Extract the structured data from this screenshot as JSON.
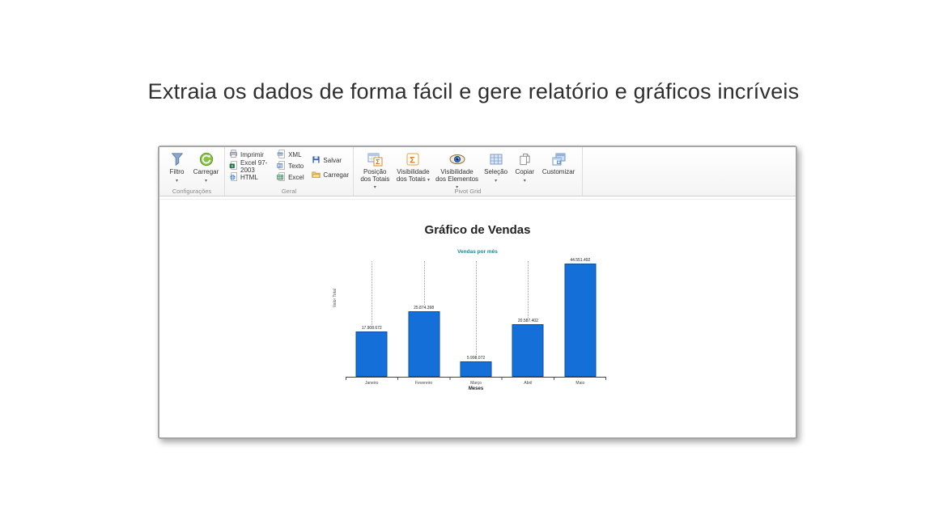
{
  "page": {
    "headline": "Extraia os dados de forma fácil e gere relatório e gráficos incríveis"
  },
  "toolbar": {
    "groups": [
      {
        "caption": "Configurações",
        "buttons": [
          {
            "label": "Filtro",
            "icon": "filter-funnel-icon",
            "has_dropdown": true
          },
          {
            "label": "Carregar",
            "icon": "refresh-load-icon",
            "has_dropdown": true
          }
        ]
      },
      {
        "caption": "Geral",
        "buttons": [
          {
            "label": "Imprimir",
            "icon": "printer-icon"
          },
          {
            "label": "Excel 97-2003",
            "icon": "excel-97-doc-icon"
          },
          {
            "label": "HTML",
            "icon": "html-globe-doc-icon"
          },
          {
            "label": "XML",
            "icon": "xml-doc-icon"
          },
          {
            "label": "Texto",
            "icon": "text-doc-icon"
          },
          {
            "label": "Excel",
            "icon": "excel-grid-doc-icon"
          },
          {
            "label": "Salvar",
            "icon": "save-floppy-icon"
          },
          {
            "label": "Carregar",
            "icon": "open-folder-icon"
          }
        ]
      },
      {
        "caption": "Pivot Grid",
        "buttons": [
          {
            "label": "Posição dos Totais",
            "icon": "totals-position-icon",
            "has_dropdown": true
          },
          {
            "label": "Visibilidade dos Totais",
            "icon": "totals-visibility-icon",
            "has_dropdown": true
          },
          {
            "label": "Visibilidade dos Elementos",
            "icon": "eye-icon",
            "has_dropdown": true
          },
          {
            "label": "Seleção",
            "icon": "selection-grid-icon",
            "has_dropdown": true
          },
          {
            "label": "Copiar",
            "icon": "copy-icon",
            "has_dropdown": true
          },
          {
            "label": "Customizar",
            "icon": "customize-windows-icon"
          }
        ]
      }
    ]
  },
  "chart_data": {
    "type": "bar",
    "title": "Gráfico de Vendas",
    "subtitle": "Vendas por mês",
    "xlabel": "Meses",
    "ylabel": "Valor Total",
    "categories": [
      "Janeiro",
      "Fevereiro",
      "Março",
      "Abril",
      "Maio"
    ],
    "values": [
      17908672,
      25874398,
      5998072,
      20587402,
      44551492
    ],
    "value_labels": [
      "17.908.672",
      "25.874.398",
      "5.998.072",
      "20.587.402",
      "44.551.492"
    ],
    "bar_color": "#1470d8",
    "subtitle_color": "#17889c",
    "ylim": [
      0,
      45000000
    ],
    "legend": "none",
    "grid": "dotted-droplines-above-bars"
  }
}
